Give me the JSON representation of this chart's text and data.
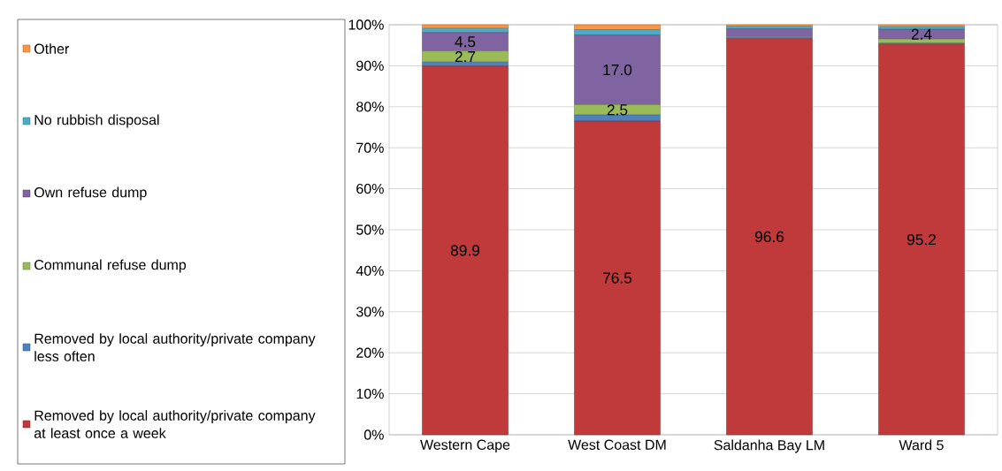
{
  "chart_data": {
    "type": "bar",
    "stacked": true,
    "grid": "y",
    "legend": "left",
    "categories": [
      "Western Cape",
      "West Coast DM",
      "Saldanha Bay LM",
      "Ward 5"
    ],
    "series": [
      {
        "name": "Removed by local authority/private company at least once a week",
        "color": "#c0393b",
        "values": [
          89.9,
          76.5,
          96.6,
          95.2
        ],
        "value_labels": [
          "89.9",
          "76.5",
          "96.6",
          "95.2"
        ]
      },
      {
        "name": "Removed by local authority/private company less often",
        "color": "#4f81bd",
        "values": [
          1.0,
          1.5,
          0.3,
          0.3
        ],
        "value_labels": [
          null,
          null,
          null,
          null
        ]
      },
      {
        "name": "Communal refuse dump",
        "color": "#9bbb59",
        "values": [
          2.7,
          2.5,
          0.2,
          1.0
        ],
        "value_labels": [
          "2.7",
          "2.5",
          null,
          null
        ]
      },
      {
        "name": "Own refuse dump",
        "color": "#8064a2",
        "values": [
          4.5,
          17.0,
          1.9,
          2.4
        ],
        "value_labels": [
          "4.5",
          "17.0",
          null,
          "2.4"
        ]
      },
      {
        "name": "No rubbish disposal",
        "color": "#4bacc6",
        "values": [
          1.0,
          1.3,
          0.6,
          0.6
        ],
        "value_labels": [
          null,
          null,
          null,
          null
        ]
      },
      {
        "name": "Other",
        "color": "#f79646",
        "values": [
          0.9,
          1.2,
          0.4,
          0.5
        ],
        "value_labels": [
          null,
          null,
          null,
          null
        ]
      }
    ],
    "ylim": [
      0,
      100
    ],
    "yticks": [
      {
        "value": 0,
        "label": "0%"
      },
      {
        "value": 10,
        "label": "10%"
      },
      {
        "value": 20,
        "label": "20%"
      },
      {
        "value": 30,
        "label": "30%"
      },
      {
        "value": 40,
        "label": "40%"
      },
      {
        "value": 50,
        "label": "50%"
      },
      {
        "value": 60,
        "label": "60%"
      },
      {
        "value": 70,
        "label": "70%"
      },
      {
        "value": 80,
        "label": "80%"
      },
      {
        "value": 90,
        "label": "90%"
      },
      {
        "value": 100,
        "label": "100%"
      }
    ]
  }
}
